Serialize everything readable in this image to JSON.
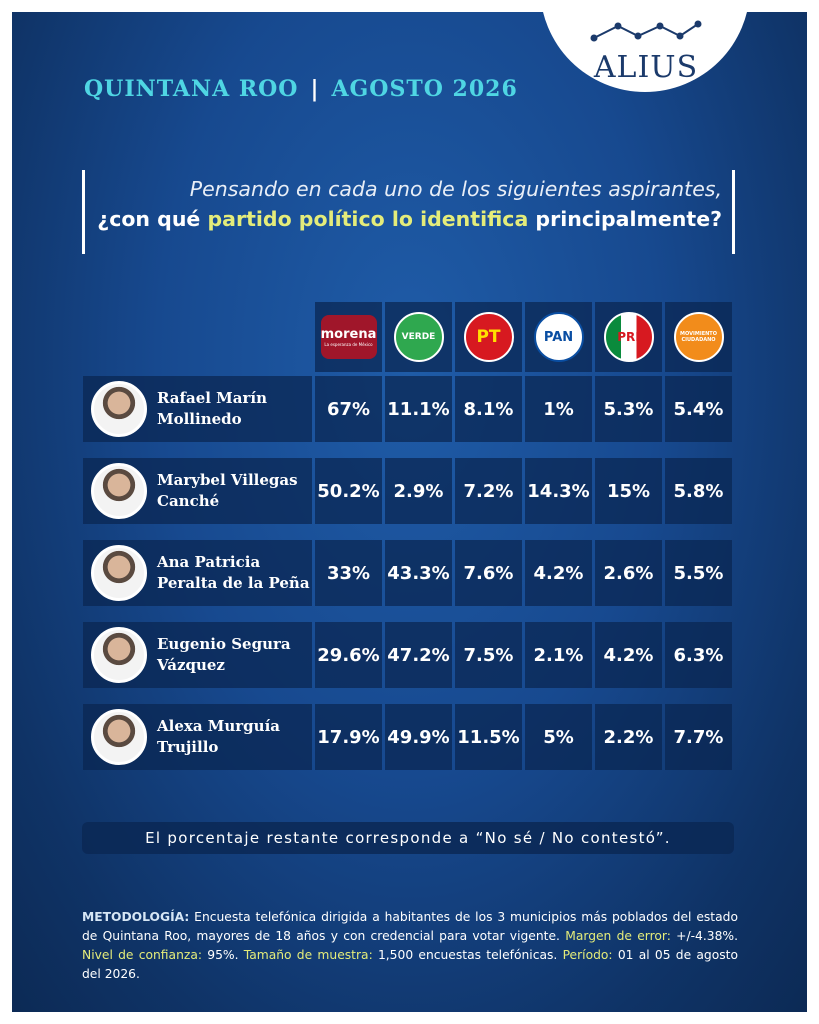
{
  "logo": "ALIUS",
  "header": {
    "region": "QUINTANA ROO",
    "separator": "|",
    "date": "AGOSTO 2026"
  },
  "question": {
    "line1": "Pensando en cada uno de los siguientes aspirantes,",
    "pre": "¿con qué",
    "highlight": "partido político lo identifica",
    "post": "principalmente?"
  },
  "table": {
    "columns": [
      {
        "name": "morena",
        "sub": "La esperanza de México"
      },
      {
        "name": "VERDE"
      },
      {
        "name": "PT"
      },
      {
        "name": "PAN"
      },
      {
        "name": "PRI"
      },
      {
        "name": "MOVIMIENTO CIUDADANO"
      }
    ],
    "rows": [
      {
        "name": [
          "Rafael Marín",
          "Mollinedo"
        ],
        "values": [
          "67%",
          "11.1%",
          "8.1%",
          "1%",
          "5.3%",
          "5.4%"
        ]
      },
      {
        "name": [
          "Marybel Villegas",
          "Canché"
        ],
        "values": [
          "50.2%",
          "2.9%",
          "7.2%",
          "14.3%",
          "15%",
          "5.8%"
        ]
      },
      {
        "name": [
          "Ana Patricia",
          "Peralta de la Peña"
        ],
        "values": [
          "33%",
          "43.3%",
          "7.6%",
          "4.2%",
          "2.6%",
          "5.5%"
        ]
      },
      {
        "name": [
          "Eugenio Segura",
          "Vázquez"
        ],
        "values": [
          "29.6%",
          "47.2%",
          "7.5%",
          "2.1%",
          "4.2%",
          "6.3%"
        ]
      },
      {
        "name": [
          "Alexa Murguía",
          "Trujillo"
        ],
        "values": [
          "17.9%",
          "49.9%",
          "11.5%",
          "5%",
          "2.2%",
          "7.7%"
        ]
      }
    ]
  },
  "note": "El porcentaje restante corresponde a “No sé / No contestó”.",
  "methodology": [
    "METODOLOGÍA:",
    " Encuesta telefónica dirigida a habitantes de los 3 municipios más poblados del estado de Quintana Roo, mayores de 18 años y con credencial para votar vigente. ",
    "Margen de error:",
    " +/-4.38%. ",
    "Nivel de confianza:",
    " 95%. ",
    "Tamaño de muestra:",
    " 1,500 encuestas telefónicas. ",
    "Período:",
    " 01 al 05 de agosto del 2026."
  ]
}
